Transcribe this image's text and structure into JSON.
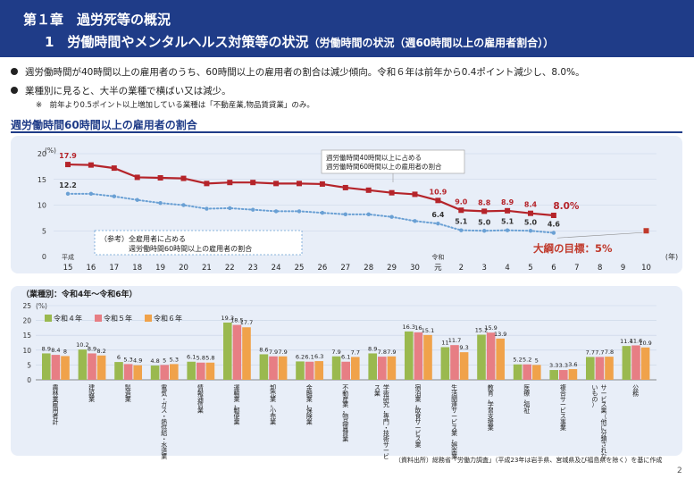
{
  "header": {
    "line1": "第１章　過労死等の概況",
    "line2_main": "1　労働時間やメンタルヘルス対策等の状況",
    "line2_sub": "（労働時間の状況（週60時間以上の雇用者割合））"
  },
  "bullets": [
    "週労働時間が40時間以上の雇用者のうち、60時間以上の雇用者の割合は減少傾向。令和６年は前年から0.4ポイント減少し、8.0%。",
    "業種別に見ると、大半の業種で横ばい又は減少。"
  ],
  "note": "※　前年より0.5ポイント以上増加している業種は「不動産業,物品賃貸業」のみ。",
  "section_title": "週労働時間60時間以上の雇用者の割合",
  "industry_title": "（業種別：令和4年～令和6年）",
  "source": "（資料出所）総務省「労働力調査」（平成23年は岩手県、宮城県及び福島県を除く）を基に作成",
  "page_number": "2",
  "colors": {
    "header_bg": "#1f3c88",
    "red_series": "#b5242a",
    "blue_series": "#6aa0d4",
    "target": "#c0392b",
    "r4": "#9ab94f",
    "r5": "#e77e84",
    "r6": "#f0a24a"
  },
  "chart_data": [
    {
      "type": "line",
      "ylabel": "(%)",
      "xlabel": "(年)",
      "ylim": [
        0,
        20
      ],
      "yticks": [
        0,
        5,
        10,
        15,
        20
      ],
      "x": [
        "15",
        "16",
        "17",
        "18",
        "19",
        "20",
        "21",
        "22",
        "23",
        "24",
        "25",
        "26",
        "27",
        "28",
        "29",
        "30",
        "元",
        "2",
        "3",
        "4",
        "5",
        "6",
        "7",
        "8",
        "9",
        "10"
      ],
      "era_labels": [
        {
          "at": "15",
          "text": "平成"
        },
        {
          "at": "元",
          "text": "令和"
        }
      ],
      "series": [
        {
          "name": "週労働時間40時間以上に占める週労働時間60時間以上の雇用者の割合",
          "values": [
            17.9,
            17.8,
            17.2,
            15.4,
            15.3,
            15.2,
            14.2,
            14.4,
            14.4,
            14.2,
            14.2,
            14.1,
            13.4,
            12.9,
            12.4,
            12.1,
            10.9,
            9.0,
            8.8,
            8.9,
            8.4,
            8.0,
            null,
            null,
            null,
            null
          ],
          "labels": {
            "0": "17.9",
            "16": "10.9",
            "17": "9.0",
            "18": "8.8",
            "19": "8.9",
            "20": "8.4",
            "21": "8.0%"
          }
        },
        {
          "name": "（参考）全雇用者に占める週労働時間60時間以上の雇用者の割合",
          "values": [
            12.2,
            12.2,
            11.7,
            11.0,
            10.4,
            10.0,
            9.3,
            9.4,
            9.1,
            8.8,
            8.8,
            8.5,
            8.2,
            8.2,
            7.7,
            6.9,
            6.4,
            5.1,
            5.0,
            5.1,
            5.0,
            4.6,
            null,
            null,
            null,
            null
          ],
          "labels": {
            "0": "12.2",
            "16": "6.4",
            "17": "5.1",
            "18": "5.0",
            "19": "5.1",
            "20": "5.0",
            "21": "4.6"
          }
        }
      ],
      "target": {
        "x": "10",
        "value": 5,
        "label": "大綱の目標：5%"
      },
      "legend_red": [
        "週労働時間40時間以上に占める",
        "週労働時間60時間以上の雇用者の割合"
      ],
      "legend_blue": [
        "（参考）全雇用者に占める",
        "週労働時間60時間以上の雇用者の割合"
      ]
    },
    {
      "type": "bar",
      "ylabel": "(%)",
      "ylim": [
        0,
        25
      ],
      "yticks": [
        0,
        5,
        10,
        15,
        20,
        25
      ],
      "legend_position": "top-left",
      "series": [
        {
          "name": "令和４年",
          "values": [
            8.9,
            10.2,
            6.0,
            4.8,
            6.1,
            19.3,
            8.6,
            6.2,
            7.9,
            8.9,
            16.3,
            11.0,
            15.2,
            5.2,
            3.3,
            7.7,
            11.4
          ]
        },
        {
          "name": "令和５年",
          "values": [
            8.4,
            8.9,
            5.3,
            5.0,
            5.8,
            18.5,
            7.9,
            6.1,
            6.1,
            7.8,
            16.0,
            11.7,
            15.9,
            5.2,
            3.3,
            7.7,
            11.6
          ]
        },
        {
          "name": "令和６年",
          "values": [
            8.0,
            8.2,
            4.9,
            5.3,
            5.8,
            17.7,
            7.9,
            6.3,
            7.7,
            7.9,
            15.1,
            9.3,
            13.9,
            5.0,
            3.6,
            7.8,
            10.9
          ]
        }
      ],
      "categories": [
        [
          "農",
          "林",
          "業",
          "雇",
          "用",
          "者",
          "計"
        ],
        [
          "建",
          "設",
          "業"
        ],
        [
          "製",
          "造",
          "業"
        ],
        [
          "電",
          "気",
          "・",
          "ガ",
          "ス",
          "・",
          "熱",
          "供",
          "給",
          "・",
          "水",
          "道",
          "業"
        ],
        [
          "情",
          "報",
          "通",
          "信",
          "業"
        ],
        [
          "運",
          "輸",
          "業",
          "，",
          "郵",
          "便",
          "業"
        ],
        [
          "卸",
          "売",
          "業",
          "，",
          "小",
          "売",
          "業"
        ],
        [
          "金",
          "融",
          "業",
          "，",
          "保",
          "険",
          "業"
        ],
        [
          "不",
          "動",
          "産",
          "業",
          "，",
          "物",
          "品",
          "賃",
          "貸",
          "業"
        ],
        [
          "学",
          "術",
          "研",
          "究",
          "，",
          "専",
          "門",
          "・",
          "技",
          "術",
          "サ",
          "ー",
          "ビ",
          "ス",
          "業"
        ],
        [
          "宿",
          "泊",
          "業",
          "，",
          "飲",
          "食",
          "サ",
          "ー",
          "ビ",
          "ス",
          "業"
        ],
        [
          "生",
          "活",
          "関",
          "連",
          "サ",
          "ー",
          "ビ",
          "ス",
          "業",
          "，",
          "娯",
          "楽",
          "業"
        ],
        [
          "教",
          "育",
          "，",
          "学",
          "習",
          "支",
          "援",
          "業"
        ],
        [
          "医",
          "療",
          "，",
          "福",
          "祉"
        ],
        [
          "複",
          "合",
          "サ",
          "ー",
          "ビ",
          "ス",
          "事",
          "業"
        ],
        [
          "サ",
          "ー",
          "ビ",
          "ス",
          "業",
          "（",
          "他",
          "に",
          "分",
          "類",
          "さ",
          "れ",
          "な",
          "い",
          "も",
          "の",
          "）"
        ],
        [
          "公",
          "務"
        ]
      ]
    }
  ]
}
